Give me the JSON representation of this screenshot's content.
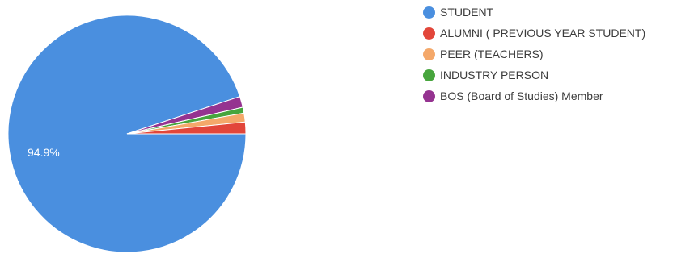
{
  "chart_data": {
    "type": "pie",
    "title": "",
    "categories": [
      "STUDENT",
      "ALUMNI ( PREVIOUS YEAR STUDENT)",
      "PEER (TEACHERS)",
      "INDUSTRY PERSON",
      "BOS (Board of Studies) Member"
    ],
    "values": [
      94.9,
      1.6,
      1.2,
      0.8,
      1.5
    ],
    "colors": [
      "#4a8fdf",
      "#e2463a",
      "#f4a86a",
      "#47a53d",
      "#953390"
    ],
    "slice_labels": [
      "94.9%",
      "",
      "",
      "",
      ""
    ],
    "legend_placement": "right"
  }
}
